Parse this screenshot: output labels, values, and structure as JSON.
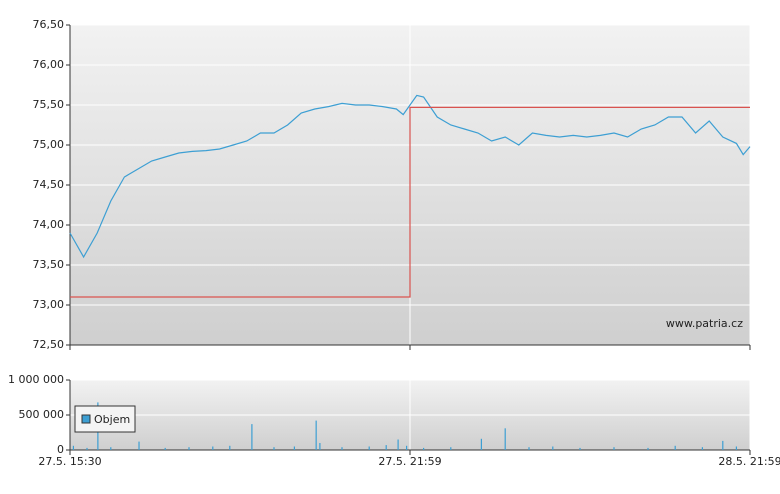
{
  "chart_data": [
    {
      "type": "line",
      "watermark": "www.patria.cz",
      "xlim": [
        0,
        200
      ],
      "ylim": [
        72.5,
        76.5
      ],
      "yticks": [
        {
          "value": 72.5,
          "label": "72,50"
        },
        {
          "value": 73,
          "label": "73,00"
        },
        {
          "value": 73.5,
          "label": "73,50"
        },
        {
          "value": 74,
          "label": "74,00"
        },
        {
          "value": 74.5,
          "label": "74,50"
        },
        {
          "value": 75,
          "label": "75,00"
        },
        {
          "value": 75.5,
          "label": "75,50"
        },
        {
          "value": 76,
          "label": "76,00"
        },
        {
          "value": 76.5,
          "label": "76,50"
        }
      ],
      "grid": true,
      "series": [
        {
          "color": "#3d9fd3",
          "x": [
            0,
            4,
            8,
            12,
            16,
            20,
            24,
            28,
            32,
            36,
            40,
            44,
            48,
            52,
            56,
            60,
            64,
            68,
            72,
            76,
            80,
            84,
            88,
            92,
            96,
            98,
            100,
            102,
            104,
            108,
            112,
            116,
            120,
            124,
            128,
            132,
            136,
            140,
            144,
            148,
            152,
            156,
            160,
            164,
            168,
            172,
            176,
            180,
            184,
            188,
            192,
            196,
            198,
            200
          ],
          "values": [
            73.9,
            73.6,
            73.9,
            74.3,
            74.6,
            74.7,
            74.8,
            74.85,
            74.9,
            74.92,
            74.93,
            74.95,
            75.0,
            75.05,
            75.15,
            75.15,
            75.25,
            75.4,
            75.45,
            75.48,
            75.52,
            75.5,
            75.5,
            75.48,
            75.45,
            75.38,
            75.5,
            75.62,
            75.6,
            75.35,
            75.25,
            75.2,
            75.15,
            75.05,
            75.1,
            75.0,
            75.15,
            75.12,
            75.1,
            75.12,
            75.1,
            75.12,
            75.15,
            75.1,
            75.2,
            75.25,
            75.35,
            75.35,
            75.15,
            75.3,
            75.1,
            75.02,
            74.88,
            74.98
          ]
        },
        {
          "color": "#d9534f",
          "x": [
            0,
            100,
            100,
            200
          ],
          "values": [
            73.1,
            73.1,
            75.47,
            75.47
          ]
        }
      ]
    },
    {
      "type": "bar",
      "xlim": [
        0,
        200
      ],
      "ylim": [
        0,
        1000000
      ],
      "yticks": [
        0,
        {
          "value": 500000,
          "label": "500 000"
        },
        {
          "value": 1000000,
          "label": "1 000 000"
        }
      ],
      "xticks": [
        {
          "value": 0,
          "label": "27.5. 15:30"
        },
        {
          "value": 100,
          "label": "27.5. 21:59"
        },
        {
          "value": 200,
          "label": "28.5. 21:59"
        }
      ],
      "grid": true,
      "series": [
        {
          "name": "Objem",
          "color": "#3d9fd3",
          "x": [
            1,
            5,
            8.2,
            12,
            20.3,
            28,
            35,
            42,
            47,
            53.5,
            60,
            66,
            72.4,
            73.5,
            80,
            88,
            93,
            96.5,
            99,
            104,
            112,
            121,
            128,
            135,
            142,
            150,
            160,
            170,
            178,
            186,
            192,
            196
          ],
          "values": [
            60000,
            30000,
            680000,
            40000,
            120000,
            30000,
            40000,
            50000,
            60000,
            370000,
            40000,
            50000,
            420000,
            100000,
            40000,
            50000,
            70000,
            150000,
            60000,
            30000,
            40000,
            160000,
            310000,
            40000,
            50000,
            30000,
            40000,
            30000,
            60000,
            40000,
            130000,
            50000
          ]
        }
      ]
    }
  ]
}
